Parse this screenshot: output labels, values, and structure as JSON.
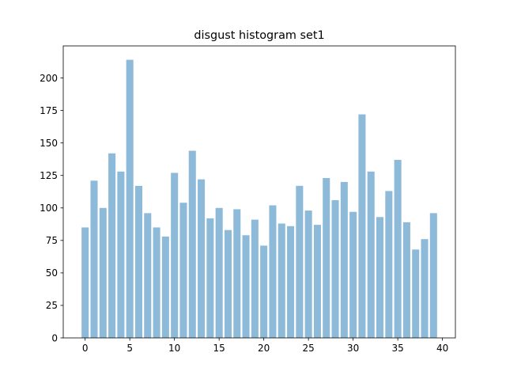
{
  "chart_data": {
    "type": "bar",
    "title": "disgust histogram set1",
    "xlabel": "",
    "ylabel": "",
    "x": [
      0,
      1,
      2,
      3,
      4,
      5,
      6,
      7,
      8,
      9,
      10,
      11,
      12,
      13,
      14,
      15,
      16,
      17,
      18,
      19,
      20,
      21,
      22,
      23,
      24,
      25,
      26,
      27,
      28,
      29,
      30,
      31,
      32,
      33,
      34,
      35,
      36,
      37,
      38,
      39
    ],
    "values": [
      85,
      121,
      100,
      142,
      128,
      214,
      117,
      96,
      85,
      78,
      127,
      104,
      144,
      122,
      92,
      100,
      83,
      99,
      79,
      91,
      71,
      102,
      88,
      86,
      117,
      98,
      87,
      123,
      106,
      120,
      97,
      172,
      128,
      93,
      113,
      137,
      89,
      68,
      76,
      96
    ],
    "xlim": [
      -2.45,
      41.45
    ],
    "ylim": [
      0,
      224.7
    ],
    "xticks": [
      0,
      5,
      10,
      15,
      20,
      25,
      30,
      35,
      40
    ],
    "yticks": [
      0,
      25,
      50,
      75,
      100,
      125,
      150,
      175,
      200
    ],
    "bar_color": "#8ebad9",
    "grid": false,
    "legend": "none"
  }
}
